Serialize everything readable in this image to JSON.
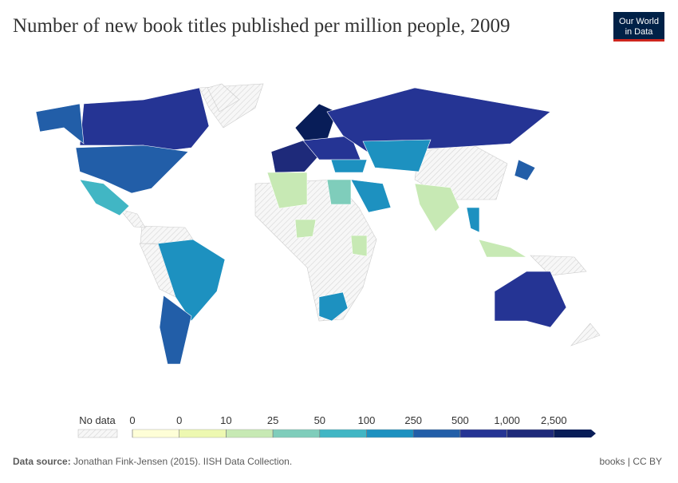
{
  "header": {
    "title": "Number of new book titles published per million people, 2009",
    "logo": [
      "Our World",
      "in Data"
    ]
  },
  "legend": {
    "no_data_label": "No data",
    "ticks": [
      0,
      0,
      10,
      25,
      50,
      100,
      250,
      500,
      {
        "value": 1000,
        "label": "1,000"
      },
      {
        "value": 2500,
        "label": "2,500"
      }
    ],
    "colors": [
      "#fefed7",
      "#edf8b1",
      "#c7e9b4",
      "#7fcdbb",
      "#41b6c4",
      "#1d91c0",
      "#225ea8",
      "#253494",
      "#1e2a7a",
      "#081d58"
    ]
  },
  "footer": {
    "source_label": "Data source:",
    "source": "Jonathan Fink-Jensen (2015). IISH Data Collection.",
    "license": "books | CC BY"
  }
}
